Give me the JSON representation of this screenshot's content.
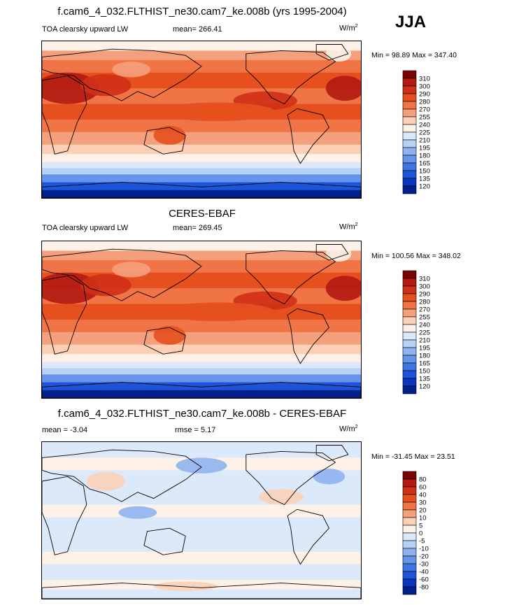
{
  "season": "JJA",
  "panels": [
    {
      "title": "f.cam6_4_032.FLTHIST_ne30.cam7_ke.008b (yrs 1995-2004)",
      "left_label": "TOA clearsky upward LW",
      "stat_text": "mean= 266.41",
      "units_base": "W/m",
      "units_exp": "2",
      "minmax": "Min =  98.89 Max = 347.40"
    },
    {
      "title": "CERES-EBAF",
      "left_label": "TOA clearsky upward LW",
      "stat_text": "mean= 269.45",
      "units_base": "W/m",
      "units_exp": "2",
      "minmax": "Min = 100.56 Max = 348.02"
    },
    {
      "title": "f.cam6_4_032.FLTHIST_ne30.cam7_ke.008b - CERES-EBAF",
      "left_label": "mean =  -3.04",
      "stat_text": "rmse =   5.17",
      "units_base": "W/m",
      "units_exp": "2",
      "minmax": "Min = -31.45 Max =  23.51"
    }
  ],
  "chart_data": [
    {
      "type": "heatmap",
      "title": "f.cam6_4_032.FLTHIST_ne30.cam7_ke.008b (yrs 1995-2004)",
      "variable": "TOA clearsky upward LW",
      "units": "W/m2",
      "mean": 266.41,
      "min": 98.89,
      "max": 347.4,
      "colorbar_levels": [
        "310",
        "300",
        "290",
        "280",
        "270",
        "255",
        "240",
        "225",
        "210",
        "195",
        "180",
        "165",
        "150",
        "135",
        "120"
      ],
      "colors": [
        "#7a0403",
        "#b21a12",
        "#cf3016",
        "#e6501f",
        "#f07446",
        "#f5a07c",
        "#fbd0b7",
        "#fdf1e8",
        "#dbe9fb",
        "#b8d1f6",
        "#8fb3f0",
        "#6694ea",
        "#3f74e4",
        "#1d55da",
        "#0836bf",
        "#00208c"
      ]
    },
    {
      "type": "heatmap",
      "title": "CERES-EBAF",
      "variable": "TOA clearsky upward LW",
      "units": "W/m2",
      "mean": 269.45,
      "min": 100.56,
      "max": 348.02,
      "colorbar_levels": [
        "310",
        "300",
        "290",
        "280",
        "270",
        "255",
        "240",
        "225",
        "210",
        "195",
        "180",
        "165",
        "150",
        "135",
        "120"
      ],
      "colors": [
        "#7a0403",
        "#b21a12",
        "#cf3016",
        "#e6501f",
        "#f07446",
        "#f5a07c",
        "#fbd0b7",
        "#fdf1e8",
        "#dbe9fb",
        "#b8d1f6",
        "#8fb3f0",
        "#6694ea",
        "#3f74e4",
        "#1d55da",
        "#0836bf",
        "#00208c"
      ]
    },
    {
      "type": "heatmap",
      "title": "f.cam6_4_032.FLTHIST_ne30.cam7_ke.008b - CERES-EBAF",
      "units": "W/m2",
      "mean": -3.04,
      "rmse": 5.17,
      "min": -31.45,
      "max": 23.51,
      "colorbar_levels": [
        "80",
        "60",
        "40",
        "30",
        "20",
        "10",
        "5",
        "0",
        "-5",
        "-10",
        "-20",
        "-30",
        "-40",
        "-60",
        "-80"
      ],
      "colors": [
        "#7a0403",
        "#b21a12",
        "#cf3016",
        "#e6501f",
        "#f07446",
        "#f5a07c",
        "#fbd0b7",
        "#fdf1e8",
        "#dbe9fb",
        "#b8d1f6",
        "#8fb3f0",
        "#6694ea",
        "#3f74e4",
        "#1d55da",
        "#0836bf",
        "#00208c"
      ]
    }
  ]
}
